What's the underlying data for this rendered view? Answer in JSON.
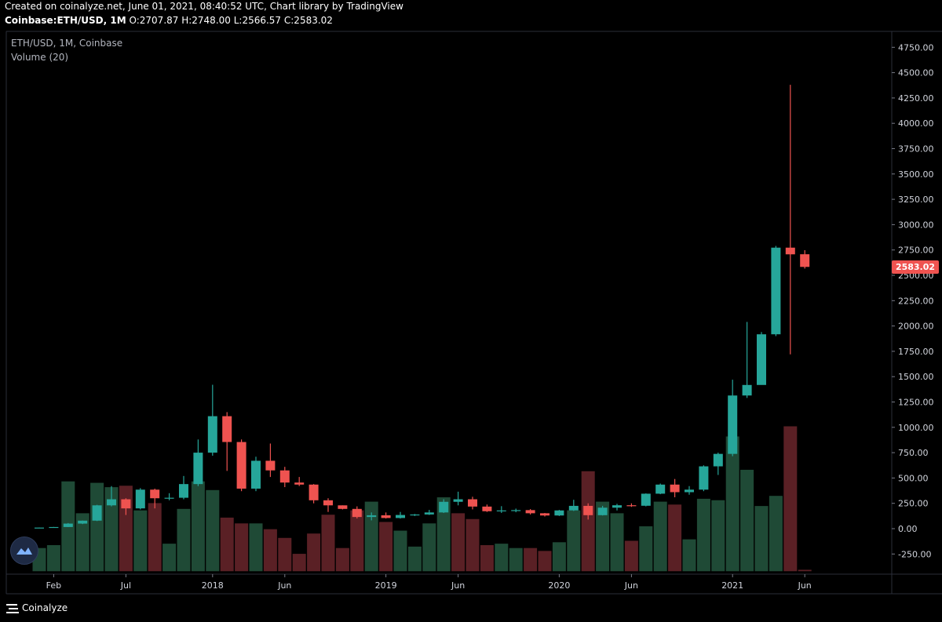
{
  "header": {
    "line1": "Created on coinalyze.net, June 01, 2021, 08:40:52 UTC, Chart library by TradingView",
    "symbol": "Coinbase:ETH/USD, 1M",
    "ohlc": "O:2707.87 H:2748.00 L:2566.57 C:2583.02"
  },
  "legend": {
    "main": "ETH/USD, 1M, Coinbase",
    "volume": "Volume (20)"
  },
  "footer": {
    "brand": "Coinalyze"
  },
  "colors": {
    "up": "#26a69a",
    "down": "#ef5350",
    "vol_up": "#1f4a36",
    "vol_down": "#5a2025",
    "last_price_badge": "#ef5350"
  },
  "chart_data": {
    "type": "candlestick",
    "symbol": "ETH/USD",
    "interval": "1M",
    "exchange": "Coinbase",
    "ylim": [
      -420,
      4900
    ],
    "y_ticks": [
      -250,
      0,
      250,
      500,
      750,
      1000,
      1250,
      1500,
      1750,
      2000,
      2250,
      2500,
      2750,
      3000,
      3250,
      3500,
      3750,
      4000,
      4250,
      4500,
      4750
    ],
    "x_ticks": [
      {
        "label": "Feb",
        "index": 1
      },
      {
        "label": "Jul",
        "index": 6
      },
      {
        "label": "2018",
        "index": 12
      },
      {
        "label": "Jun",
        "index": 17
      },
      {
        "label": "2019",
        "index": 24
      },
      {
        "label": "Jun",
        "index": 29
      },
      {
        "label": "2020",
        "index": 36
      },
      {
        "label": "Jun",
        "index": 41
      },
      {
        "label": "2021",
        "index": 48
      },
      {
        "label": "Jun",
        "index": 53
      }
    ],
    "last_price": "2583.02",
    "candles": [
      {
        "t": "2017-01",
        "o": 8,
        "h": 11,
        "l": 8,
        "c": 10.7
      },
      {
        "t": "2017-02",
        "o": 10.7,
        "h": 17,
        "l": 10.4,
        "c": 16.2
      },
      {
        "t": "2017-03",
        "o": 16.2,
        "h": 55,
        "l": 16,
        "c": 50
      },
      {
        "t": "2017-04",
        "o": 50,
        "h": 80,
        "l": 45,
        "c": 79
      },
      {
        "t": "2017-05",
        "o": 79,
        "h": 235,
        "l": 75,
        "c": 230
      },
      {
        "t": "2017-06",
        "o": 230,
        "h": 420,
        "l": 220,
        "c": 290
      },
      {
        "t": "2017-07",
        "o": 290,
        "h": 300,
        "l": 135,
        "c": 200
      },
      {
        "t": "2017-08",
        "o": 200,
        "h": 400,
        "l": 190,
        "c": 385
      },
      {
        "t": "2017-09",
        "o": 385,
        "h": 395,
        "l": 200,
        "c": 300
      },
      {
        "t": "2017-10",
        "o": 300,
        "h": 350,
        "l": 280,
        "c": 305
      },
      {
        "t": "2017-11",
        "o": 305,
        "h": 520,
        "l": 290,
        "c": 440
      },
      {
        "t": "2017-12",
        "o": 440,
        "h": 880,
        "l": 420,
        "c": 750
      },
      {
        "t": "2018-01",
        "o": 750,
        "h": 1420,
        "l": 720,
        "c": 1110
      },
      {
        "t": "2018-02",
        "o": 1110,
        "h": 1150,
        "l": 570,
        "c": 855
      },
      {
        "t": "2018-03",
        "o": 855,
        "h": 880,
        "l": 370,
        "c": 395
      },
      {
        "t": "2018-04",
        "o": 395,
        "h": 710,
        "l": 370,
        "c": 670
      },
      {
        "t": "2018-05",
        "o": 670,
        "h": 840,
        "l": 510,
        "c": 575
      },
      {
        "t": "2018-06",
        "o": 575,
        "h": 610,
        "l": 410,
        "c": 455
      },
      {
        "t": "2018-07",
        "o": 455,
        "h": 510,
        "l": 420,
        "c": 435
      },
      {
        "t": "2018-08",
        "o": 435,
        "h": 440,
        "l": 250,
        "c": 280
      },
      {
        "t": "2018-09",
        "o": 280,
        "h": 300,
        "l": 165,
        "c": 230
      },
      {
        "t": "2018-10",
        "o": 230,
        "h": 230,
        "l": 190,
        "c": 195
      },
      {
        "t": "2018-11",
        "o": 195,
        "h": 220,
        "l": 100,
        "c": 115
      },
      {
        "t": "2018-12",
        "o": 115,
        "h": 160,
        "l": 82,
        "c": 132
      },
      {
        "t": "2019-01",
        "o": 132,
        "h": 160,
        "l": 100,
        "c": 105
      },
      {
        "t": "2019-02",
        "o": 105,
        "h": 165,
        "l": 100,
        "c": 135
      },
      {
        "t": "2019-03",
        "o": 135,
        "h": 145,
        "l": 125,
        "c": 140
      },
      {
        "t": "2019-04",
        "o": 140,
        "h": 185,
        "l": 135,
        "c": 160
      },
      {
        "t": "2019-05",
        "o": 160,
        "h": 290,
        "l": 155,
        "c": 265
      },
      {
        "t": "2019-06",
        "o": 265,
        "h": 365,
        "l": 230,
        "c": 290
      },
      {
        "t": "2019-07",
        "o": 290,
        "h": 315,
        "l": 190,
        "c": 218
      },
      {
        "t": "2019-08",
        "o": 218,
        "h": 238,
        "l": 165,
        "c": 172
      },
      {
        "t": "2019-09",
        "o": 172,
        "h": 222,
        "l": 155,
        "c": 180
      },
      {
        "t": "2019-10",
        "o": 180,
        "h": 198,
        "l": 162,
        "c": 183
      },
      {
        "t": "2019-11",
        "o": 183,
        "h": 193,
        "l": 140,
        "c": 152
      },
      {
        "t": "2019-12",
        "o": 152,
        "h": 155,
        "l": 120,
        "c": 130
      },
      {
        "t": "2020-01",
        "o": 130,
        "h": 185,
        "l": 125,
        "c": 180
      },
      {
        "t": "2020-02",
        "o": 180,
        "h": 285,
        "l": 175,
        "c": 225
      },
      {
        "t": "2020-03",
        "o": 225,
        "h": 250,
        "l": 90,
        "c": 133
      },
      {
        "t": "2020-04",
        "o": 133,
        "h": 225,
        "l": 130,
        "c": 207
      },
      {
        "t": "2020-05",
        "o": 207,
        "h": 245,
        "l": 180,
        "c": 231
      },
      {
        "t": "2020-06",
        "o": 231,
        "h": 250,
        "l": 215,
        "c": 226
      },
      {
        "t": "2020-07",
        "o": 226,
        "h": 348,
        "l": 220,
        "c": 345
      },
      {
        "t": "2020-08",
        "o": 345,
        "h": 445,
        "l": 340,
        "c": 435
      },
      {
        "t": "2020-09",
        "o": 435,
        "h": 490,
        "l": 310,
        "c": 360
      },
      {
        "t": "2020-10",
        "o": 360,
        "h": 420,
        "l": 335,
        "c": 385
      },
      {
        "t": "2020-11",
        "o": 385,
        "h": 625,
        "l": 370,
        "c": 615
      },
      {
        "t": "2020-12",
        "o": 615,
        "h": 750,
        "l": 530,
        "c": 738
      },
      {
        "t": "2021-01",
        "o": 738,
        "h": 1470,
        "l": 715,
        "c": 1314
      },
      {
        "t": "2021-02",
        "o": 1314,
        "h": 2040,
        "l": 1290,
        "c": 1418
      },
      {
        "t": "2021-03",
        "o": 1418,
        "h": 1940,
        "l": 1420,
        "c": 1918
      },
      {
        "t": "2021-04",
        "o": 1918,
        "h": 2790,
        "l": 1900,
        "c": 2773
      },
      {
        "t": "2021-05",
        "o": 2773,
        "h": 4380,
        "l": 1720,
        "c": 2707
      },
      {
        "t": "2021-06",
        "o": 2707.87,
        "h": 2748,
        "l": 2566.57,
        "c": 2583.02
      }
    ],
    "volume": {
      "baseline_value": -420,
      "max_bar_top_value": 1010,
      "bars": [
        {
          "v": 0.16,
          "up": true
        },
        {
          "v": 0.18,
          "up": true
        },
        {
          "v": 0.62,
          "up": true
        },
        {
          "v": 0.4,
          "up": true
        },
        {
          "v": 0.61,
          "up": true
        },
        {
          "v": 0.58,
          "up": true
        },
        {
          "v": 0.59,
          "up": false
        },
        {
          "v": 0.42,
          "up": true
        },
        {
          "v": 0.47,
          "up": false
        },
        {
          "v": 0.19,
          "up": true
        },
        {
          "v": 0.43,
          "up": true
        },
        {
          "v": 0.62,
          "up": true
        },
        {
          "v": 0.56,
          "up": true
        },
        {
          "v": 0.37,
          "up": false
        },
        {
          "v": 0.33,
          "up": false
        },
        {
          "v": 0.33,
          "up": true
        },
        {
          "v": 0.29,
          "up": false
        },
        {
          "v": 0.23,
          "up": false
        },
        {
          "v": 0.12,
          "up": false
        },
        {
          "v": 0.26,
          "up": false
        },
        {
          "v": 0.39,
          "up": false
        },
        {
          "v": 0.16,
          "up": false
        },
        {
          "v": 0.42,
          "up": false
        },
        {
          "v": 0.48,
          "up": true
        },
        {
          "v": 0.34,
          "up": false
        },
        {
          "v": 0.28,
          "up": true
        },
        {
          "v": 0.17,
          "up": true
        },
        {
          "v": 0.33,
          "up": true
        },
        {
          "v": 0.51,
          "up": true
        },
        {
          "v": 0.4,
          "up": false
        },
        {
          "v": 0.36,
          "up": false
        },
        {
          "v": 0.18,
          "up": false
        },
        {
          "v": 0.19,
          "up": true
        },
        {
          "v": 0.16,
          "up": true
        },
        {
          "v": 0.16,
          "up": false
        },
        {
          "v": 0.14,
          "up": false
        },
        {
          "v": 0.2,
          "up": true
        },
        {
          "v": 0.42,
          "up": true
        },
        {
          "v": 0.69,
          "up": false
        },
        {
          "v": 0.48,
          "up": true
        },
        {
          "v": 0.4,
          "up": true
        },
        {
          "v": 0.21,
          "up": false
        },
        {
          "v": 0.31,
          "up": true
        },
        {
          "v": 0.48,
          "up": true
        },
        {
          "v": 0.46,
          "up": false
        },
        {
          "v": 0.22,
          "up": true
        },
        {
          "v": 0.5,
          "up": true
        },
        {
          "v": 0.49,
          "up": true
        },
        {
          "v": 0.93,
          "up": true
        },
        {
          "v": 0.7,
          "up": true
        },
        {
          "v": 0.45,
          "up": true
        },
        {
          "v": 0.52,
          "up": true
        },
        {
          "v": 1.0,
          "up": false
        },
        {
          "v": 0.01,
          "up": false
        }
      ]
    }
  }
}
